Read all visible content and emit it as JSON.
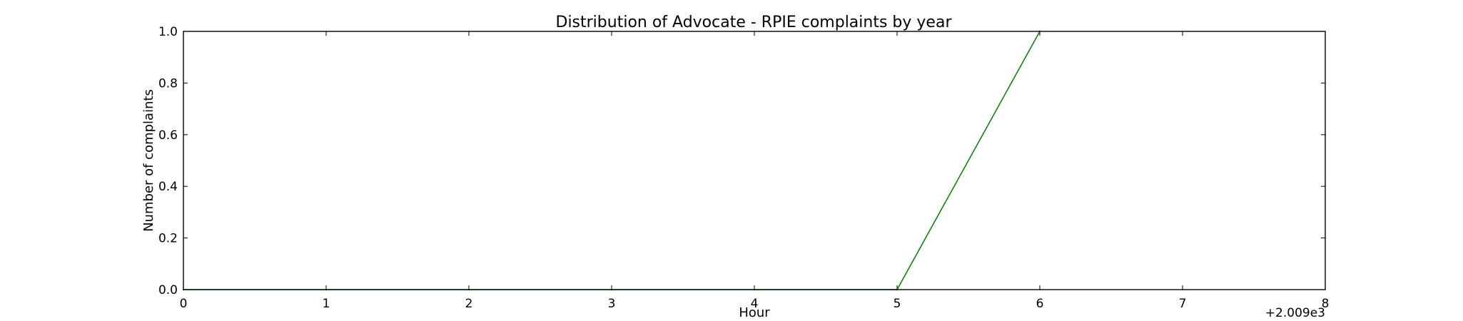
{
  "chart_data": {
    "type": "line",
    "title": "Distribution of  Advocate - RPIE complaints by year",
    "xlabel": "Hour",
    "ylabel": "Number of complaints",
    "x_offset_label": "+2.009e3",
    "xlim": [
      0,
      8
    ],
    "ylim": [
      0.0,
      1.0
    ],
    "x_ticks": [
      0,
      1,
      2,
      3,
      4,
      5,
      6,
      7,
      8
    ],
    "x_tick_labels": [
      "0",
      "1",
      "2",
      "3",
      "4",
      "5",
      "6",
      "7",
      "8"
    ],
    "y_ticks": [
      0.0,
      0.2,
      0.4,
      0.6,
      0.8,
      1.0
    ],
    "y_tick_labels": [
      "0.0",
      "0.2",
      "0.4",
      "0.6",
      "0.8",
      "1.0"
    ],
    "grid": false,
    "legend": "none",
    "series": [
      {
        "color": "#008000",
        "x": [
          0,
          1,
          2,
          3,
          4,
          5,
          6
        ],
        "y": [
          0,
          0,
          0,
          0,
          0,
          0,
          1
        ]
      }
    ]
  }
}
